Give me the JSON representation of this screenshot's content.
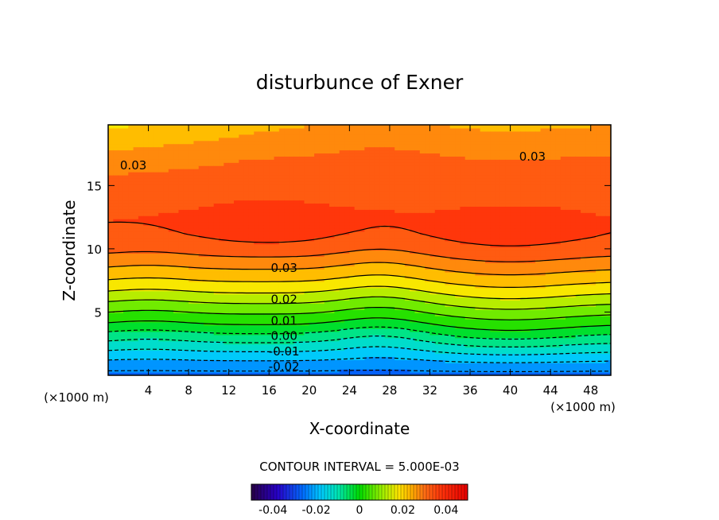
{
  "chart_data": {
    "type": "heatmap",
    "title": "disturbunce of Exner",
    "xlabel": "X-coordinate",
    "ylabel": "Z-coordinate",
    "x_unit_left": "(×1000 m)",
    "x_unit_right": "(×1000 m)",
    "xlim": [
      0,
      50
    ],
    "ylim": [
      0,
      19.8
    ],
    "x_ticks": [
      4,
      8,
      12,
      16,
      20,
      24,
      28,
      32,
      36,
      40,
      44,
      48
    ],
    "y_ticks": [
      5,
      10,
      15
    ],
    "contour_interval_text": "CONTOUR INTERVAL = 5.000E-03",
    "contour_interval": 0.005,
    "colorbar": {
      "range": [
        -0.05,
        0.05
      ],
      "ticks": [
        -0.04,
        -0.02,
        0,
        0.02,
        0.04
      ],
      "tick_labels": [
        "-0.04",
        "-0.02",
        "0",
        "0.02",
        "0.04"
      ]
    },
    "profile": {
      "z": [
        0,
        1,
        2,
        3,
        4,
        5,
        6,
        7,
        8,
        9,
        10,
        11,
        12,
        13,
        15,
        17,
        19.8
      ],
      "values": [
        -0.027,
        -0.021,
        -0.014,
        -0.007,
        0.0,
        0.006,
        0.012,
        0.018,
        0.023,
        0.028,
        0.032,
        0.034,
        0.035,
        0.034,
        0.033,
        0.031,
        0.025
      ]
    },
    "contour_labels": [
      {
        "text": "0.03",
        "x": 2.5,
        "z": 16.6
      },
      {
        "text": "0.03",
        "x": 42.2,
        "z": 17.3
      },
      {
        "text": "0.03",
        "x": 17.5,
        "z": 8.5
      },
      {
        "text": "0.02",
        "x": 17.5,
        "z": 6.0
      },
      {
        "text": "0.01",
        "x": 17.5,
        "z": 4.3
      },
      {
        "text": "0.00",
        "x": 17.5,
        "z": 3.1
      },
      {
        "text": "-0.01",
        "x": 17.5,
        "z": 1.9
      },
      {
        "text": "-0.02",
        "x": 17.5,
        "z": 0.7
      }
    ]
  }
}
